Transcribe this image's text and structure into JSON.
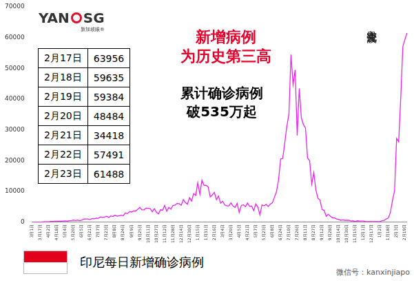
{
  "chart_data": {
    "type": "line",
    "title": [
      "新增病例",
      "为历史第三高"
    ],
    "annotations": [
      {
        "text": [
          "累计确诊病例",
          "破535万起"
        ]
      },
      {
        "text": "奥密克戎波"
      }
    ],
    "caption": "印尼每日新增确诊病例",
    "logo": [
      "YAN",
      "SG",
      "新加坡眼®"
    ],
    "watermark": "微信号：kanxinjiapo",
    "table": {
      "rows": [
        [
          "2月17日",
          63956
        ],
        [
          "2月18日",
          59635
        ],
        [
          "2月19日",
          59384
        ],
        [
          "2月20日",
          48484
        ],
        [
          "2月21日",
          34418
        ],
        [
          "2月22日",
          57491
        ],
        [
          "2月23日",
          61488
        ]
      ]
    },
    "categories": [
      "3月1日",
      null,
      null,
      null,
      "3月17日",
      null,
      null,
      null,
      "4月2日",
      null,
      null,
      null,
      "4月18日",
      null,
      null,
      null,
      "5月4日",
      null,
      null,
      null,
      "5月20日",
      null,
      null,
      null,
      "6月5日",
      null,
      null,
      null,
      "6月21日",
      null,
      null,
      null,
      "7月7日",
      null,
      null,
      null,
      "7月23日",
      null,
      null,
      null,
      "8月8日",
      null,
      null,
      null,
      "8月24日",
      null,
      null,
      null,
      "9月9日",
      null,
      null,
      null,
      "9月25日",
      null,
      null,
      null,
      "10月11日",
      null,
      null,
      null,
      "10月27日",
      null,
      null,
      null,
      "11月12日",
      null,
      null,
      null,
      "11月28日",
      null,
      null,
      null,
      "12月14日",
      null,
      null,
      null,
      "12月30日",
      null,
      null,
      null,
      "1月15日",
      null,
      null,
      null,
      "1月31日",
      null,
      null,
      null,
      "2月16日",
      null,
      null,
      null,
      "3月4日",
      null,
      null,
      null,
      "3月20日",
      null,
      null,
      null,
      "4月5日",
      null,
      null,
      null,
      "4月21日",
      null,
      null,
      null,
      "5月7日",
      null,
      null,
      null,
      "5月23日",
      null,
      null,
      null,
      "6月8日",
      null,
      null,
      null,
      "6月24日",
      null,
      null,
      null,
      "7月10日",
      null,
      null,
      null,
      "7月26日",
      null,
      null,
      null,
      "8月11日",
      null,
      null,
      null,
      "8月27日",
      null,
      null,
      null,
      "9月12日",
      null,
      null,
      null,
      "9月28日",
      null,
      null,
      null,
      "10月14日",
      null,
      null,
      null,
      "10月30日",
      null,
      null,
      null,
      "11月15日",
      null,
      null,
      null,
      "12月1日",
      null,
      null,
      null,
      "12月17日",
      null,
      null,
      null,
      "1月2日",
      null,
      null,
      null,
      "1月18日",
      null,
      null,
      null,
      "2月3日",
      null,
      null,
      null,
      "2月19日",
      null
    ],
    "values": [
      0,
      0,
      2,
      35,
      38,
      81,
      105,
      130,
      113,
      218,
      219,
      282,
      325,
      283,
      275,
      347,
      395,
      336,
      484,
      529,
      693,
      526,
      687,
      467,
      703,
      1043,
      1014,
      1031,
      862,
      1178,
      1082,
      1301,
      1268,
      1681,
      1522,
      1639,
      1906,
      1525,
      2040,
      1815,
      2277,
      1942,
      2081,
      2266,
      2106,
      3003,
      2775,
      3444,
      3307,
      3636,
      3635,
      4176,
      4823,
      4002,
      4007,
      4538,
      4497,
      4411,
      3373,
      4369,
      3222,
      2696,
      4065,
      3880,
      5444,
      3535,
      4792,
      4192,
      5418,
      5533,
      6089,
      6033,
      5489,
      7354,
      6347,
      5854,
      8002,
      6877,
      9321,
      8692,
      12818,
      9086,
      13632,
      11948,
      12001,
      11434,
      8242,
      8844,
      9687,
      7300,
      8493,
      6172,
      6808,
      5589,
      5268,
      5287,
      6279,
      5227,
      4817,
      6142,
      3128,
      5444,
      5656,
      5041,
      6243,
      5129,
      5241,
      3775,
      5928,
      4891,
      2385,
      5606,
      5296,
      5797,
      5070,
      5862,
      6294,
      8083,
      9944,
      13737,
      20574,
      20694,
      25830,
      31189,
      35094,
      54517,
      44721,
      49509,
      28228,
      43479,
      33900,
      31753,
      30625,
      20813,
      20004,
      12408,
      16138,
      10534,
      7797,
      7201,
      4128,
      3835,
      1932,
      2557,
      1954,
      1394,
      1393,
      1022,
      915,
      620,
      760,
      612,
      625,
      612,
      342,
      435,
      159,
      437,
      385,
      375,
      357,
      220,
      207,
      168,
      191,
      208,
      164,
      194,
      174,
      533,
      592,
      1054,
      1362,
      3205,
      7010,
      10185,
      27197,
      26121,
      40489,
      57049,
      59384,
      61488
    ],
    "color": "#ee22ee",
    "ylim": [
      0,
      70000
    ],
    "yticks": [
      0,
      10000,
      20000,
      30000,
      40000,
      50000,
      60000,
      70000
    ],
    "grid": false
  }
}
